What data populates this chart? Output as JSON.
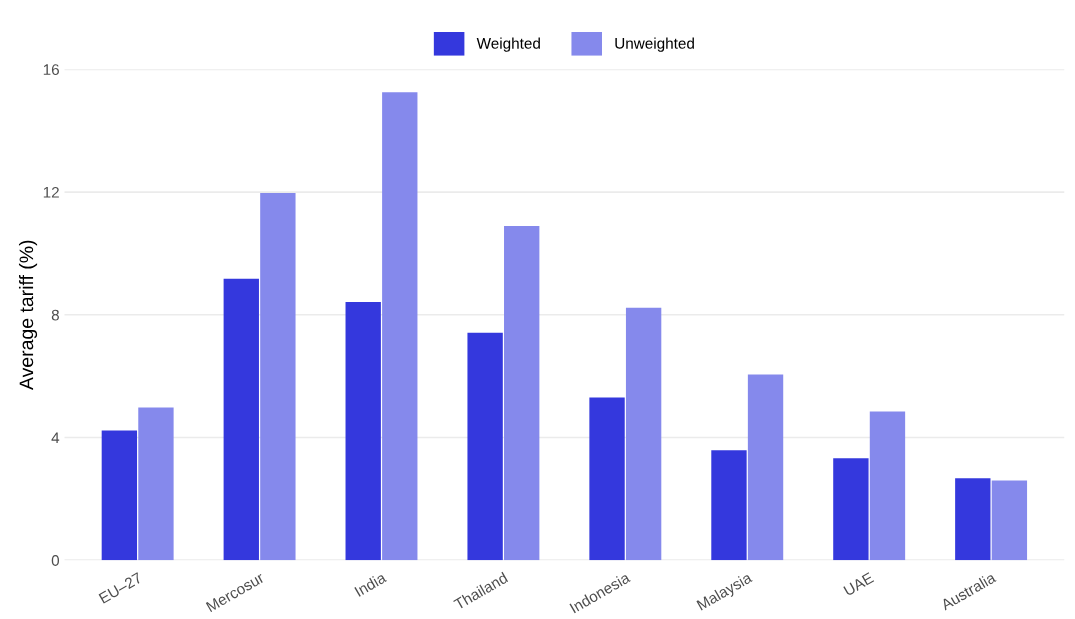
{
  "chart_data": {
    "type": "bar",
    "ylabel": "Average tariff (%)",
    "categories": [
      "EU–27",
      "Mercosur",
      "India",
      "Thailand",
      "Indonesia",
      "Malaysia",
      "UAE",
      "Australia"
    ],
    "series": [
      {
        "name": "Weighted",
        "color": "#3438dd",
        "values": [
          4.23,
          9.17,
          8.42,
          7.41,
          5.3,
          3.58,
          3.32,
          2.67
        ]
      },
      {
        "name": "Unweighted",
        "color": "#8589ec",
        "values": [
          4.98,
          11.97,
          15.25,
          10.89,
          8.23,
          6.05,
          4.85,
          2.6
        ]
      }
    ],
    "ylim": [
      0,
      16
    ],
    "yticks": [
      0,
      4,
      8,
      12,
      16
    ],
    "grid": "y",
    "legend": "top"
  }
}
